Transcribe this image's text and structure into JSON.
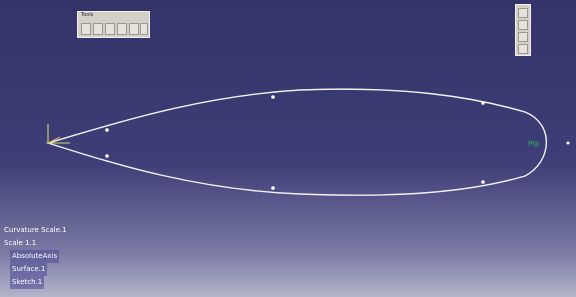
{
  "toolbar": {
    "title": "Tools"
  },
  "tree": [
    "Curvature Scale.1",
    "Scale 1.1",
    "AbsoluteAxis",
    "Surface.1",
    "Sketch.1"
  ],
  "tag": "Ptp"
}
